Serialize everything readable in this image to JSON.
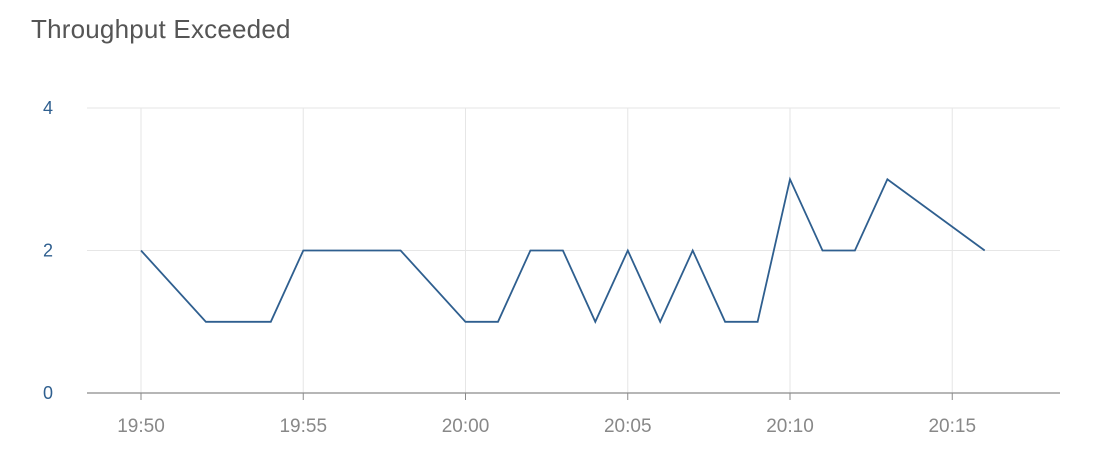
{
  "chart_data": {
    "type": "line",
    "title": "Throughput Exceeded",
    "xlabel": "",
    "ylabel": "",
    "ylim": [
      0,
      4
    ],
    "y_ticks": [
      "0",
      "2",
      "4"
    ],
    "x_ticks": [
      "19:50",
      "19:55",
      "20:00",
      "20:05",
      "20:10",
      "20:15"
    ],
    "x": [
      "19:50",
      "19:52",
      "19:54",
      "19:55",
      "19:58",
      "20:00",
      "20:01",
      "20:02",
      "20:03",
      "20:04",
      "20:05",
      "20:06",
      "20:07",
      "20:08",
      "20:09",
      "20:10",
      "20:11",
      "20:12",
      "20:13",
      "20:16"
    ],
    "series": [
      {
        "values": [
          2,
          1,
          1,
          2,
          2,
          1,
          1,
          2,
          2,
          1,
          2,
          1,
          2,
          1,
          1,
          3,
          2,
          2,
          3,
          2
        ],
        "color": "#2f5f8f"
      }
    ],
    "grid": true,
    "legend": "none",
    "colors": {
      "line": "#2f5f8f",
      "grid": "#e6e6e6",
      "axis": "#8a8a8a",
      "title": "#555555",
      "y_tick": "#2f5f8f",
      "x_tick": "#888888"
    }
  }
}
